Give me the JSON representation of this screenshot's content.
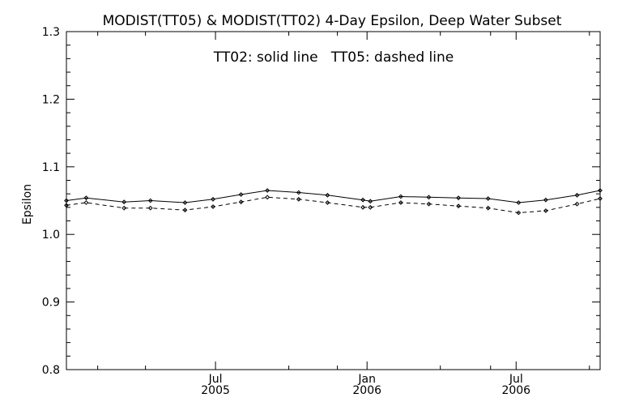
{
  "chart_data": {
    "type": "line",
    "title": "MODIST(TT05) & MODIST(TT02) 4-Day Epsilon, Deep Water Subset",
    "annotation": "TT02: solid line   TT05: dashed line",
    "ylabel": "Epsilon",
    "xlabel": "",
    "ylim": [
      0.8,
      1.3
    ],
    "xlim": [
      "2005-01-01",
      "2006-10-11"
    ],
    "y_ticks": [
      "0.8",
      "0.9",
      "1.0",
      "1.1",
      "1.2",
      "1.3"
    ],
    "x_ticks": [
      {
        "date": "2005-07-01",
        "month": "Jul",
        "year": "2005"
      },
      {
        "date": "2006-01-01",
        "month": "Jan",
        "year": "2006"
      },
      {
        "date": "2006-07-01",
        "month": "Jul",
        "year": "2006"
      }
    ],
    "x_minor_ticks": [
      "2005-02-08",
      "2005-04-07",
      "2005-09-28",
      "2005-11-26",
      "2006-03-31",
      "2006-05-31",
      "2006-09-28"
    ],
    "grid": false,
    "series": [
      {
        "name": "TT02",
        "style": "solid",
        "color": "#000000",
        "x": [
          "2005-01-01",
          "2005-01-25",
          "2005-03-12",
          "2005-04-13",
          "2005-05-25",
          "2005-06-28",
          "2005-08-01",
          "2005-09-02",
          "2005-10-10",
          "2005-11-14",
          "2005-12-27",
          "2006-01-05",
          "2006-02-11",
          "2006-03-17",
          "2006-04-22",
          "2006-05-28",
          "2006-07-04",
          "2006-08-06",
          "2006-09-13",
          "2006-10-11"
        ],
        "values": [
          1.05,
          1.054,
          1.048,
          1.05,
          1.047,
          1.052,
          1.059,
          1.065,
          1.062,
          1.058,
          1.051,
          1.049,
          1.056,
          1.055,
          1.054,
          1.053,
          1.047,
          1.051,
          1.058,
          1.065
        ]
      },
      {
        "name": "TT05",
        "style": "dashed",
        "color": "#000000",
        "x": [
          "2005-01-01",
          "2005-01-25",
          "2005-03-12",
          "2005-04-13",
          "2005-05-25",
          "2005-06-28",
          "2005-08-01",
          "2005-09-02",
          "2005-10-10",
          "2005-11-14",
          "2005-12-27",
          "2006-01-05",
          "2006-02-11",
          "2006-03-17",
          "2006-04-22",
          "2006-05-28",
          "2006-07-04",
          "2006-08-06",
          "2006-09-13",
          "2006-10-11"
        ],
        "values": [
          1.043,
          1.047,
          1.039,
          1.039,
          1.036,
          1.041,
          1.048,
          1.055,
          1.052,
          1.047,
          1.04,
          1.04,
          1.047,
          1.045,
          1.042,
          1.039,
          1.032,
          1.035,
          1.045,
          1.053
        ]
      }
    ]
  }
}
